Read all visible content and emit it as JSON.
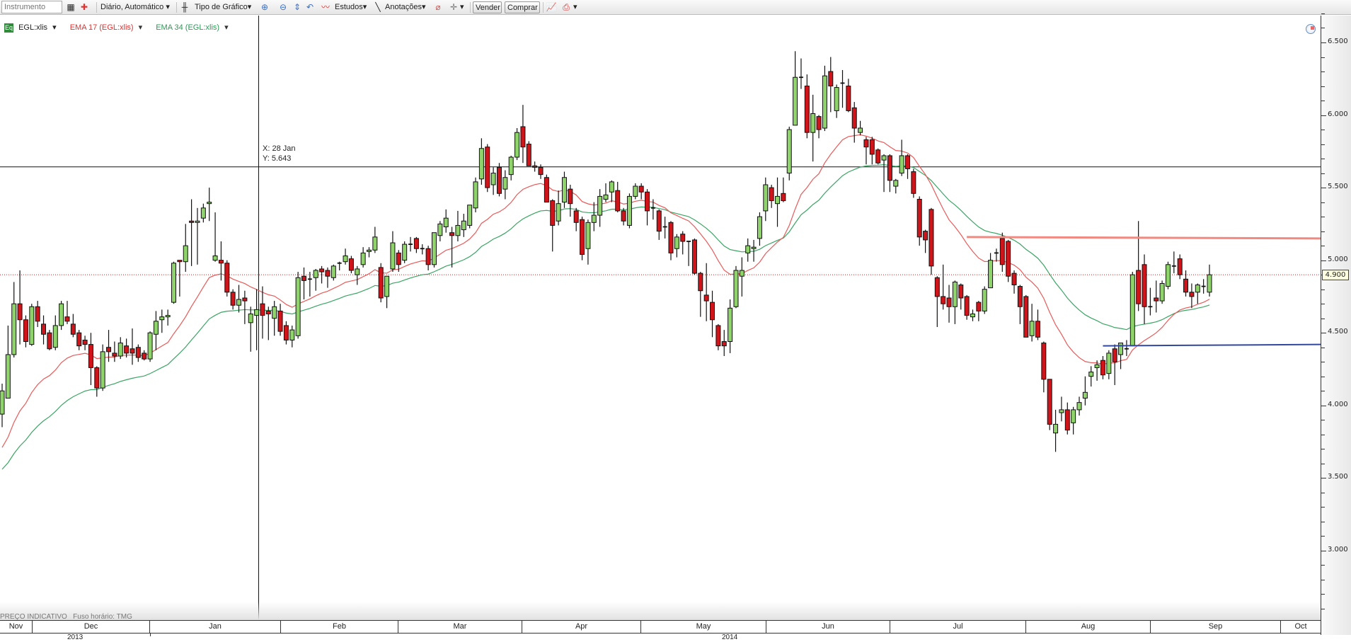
{
  "toolbar": {
    "instrument_placeholder": "Instrumento",
    "period": "Diário,  Automático",
    "chart_type": "Tipo de Gráfico",
    "studies": "Estudos",
    "annotations": "Anotações",
    "sell": "Vender",
    "buy": "Comprar",
    "dropdown_glyph": "▾"
  },
  "legend": {
    "badge": "Eq",
    "instrument": "EGL:xlis",
    "ema17": "EMA 17 (EGL:xlis)",
    "ema34": "EMA 34 (EGL:xlis)"
  },
  "crosshair": {
    "x_label": "X: 28 Jan",
    "y_label": "Y: 5.643"
  },
  "footer": {
    "price_note": "PREÇO INDICATIVO",
    "timezone": "Fuso horário: TMG"
  },
  "colors": {
    "up": "#8fd46a",
    "down": "#d0141a",
    "ema17": "#e85a5a",
    "ema34": "#3aa564",
    "resistance": "#f08a80",
    "support": "#3048a0",
    "last_price": "#cc2222"
  },
  "chart_data": {
    "type": "candlestick",
    "title": "",
    "xlabel": "",
    "ylabel": "",
    "ylim": [
      2.5,
      6.7
    ],
    "y_ticks": [
      "6.500",
      "6.000",
      "5.500",
      "5.000",
      "4.500",
      "4.000",
      "3.500",
      "3.000"
    ],
    "x_months": [
      "Nov",
      "Dec",
      "Jan",
      "Feb",
      "Mar",
      "Apr",
      "May",
      "Jun",
      "Jul",
      "Aug",
      "Sep",
      "Oct"
    ],
    "x_years": [
      "2013",
      "2014"
    ],
    "grid": false,
    "last_price": 4.9,
    "last_price_label": "4.900",
    "crosshair_price": 5.643,
    "crosshair_date": "28 Jan",
    "ema17_start": 3.71,
    "ema34_start": 3.56,
    "resistance_line": {
      "price_from": 5.16,
      "price_to": 5.15,
      "from_bar": 163
    },
    "support_line": {
      "price_from": 4.41,
      "price_to": 4.42,
      "from_bar": 186
    },
    "ohlc": [
      [
        3.94,
        4.15,
        3.85,
        4.1
      ],
      [
        4.05,
        4.55,
        4.05,
        4.35
      ],
      [
        4.35,
        4.85,
        4.33,
        4.7
      ],
      [
        4.7,
        4.93,
        4.42,
        4.59
      ],
      [
        4.59,
        4.62,
        4.4,
        4.44
      ],
      [
        4.42,
        4.7,
        4.41,
        4.68
      ],
      [
        4.68,
        4.72,
        4.54,
        4.58
      ],
      [
        4.56,
        4.62,
        4.42,
        4.49
      ],
      [
        4.5,
        4.52,
        4.38,
        4.39
      ],
      [
        4.4,
        4.62,
        4.38,
        4.55
      ],
      [
        4.55,
        4.72,
        4.52,
        4.7
      ],
      [
        4.61,
        4.72,
        4.56,
        4.58
      ],
      [
        4.56,
        4.63,
        4.47,
        4.49
      ],
      [
        4.5,
        4.52,
        4.38,
        4.41
      ],
      [
        4.45,
        4.48,
        4.38,
        4.42
      ],
      [
        4.42,
        4.5,
        4.14,
        4.26
      ],
      [
        4.26,
        4.27,
        4.06,
        4.12
      ],
      [
        4.12,
        4.42,
        4.1,
        4.37
      ],
      [
        4.4,
        4.52,
        4.3,
        4.37
      ],
      [
        4.36,
        4.44,
        4.3,
        4.34
      ],
      [
        4.34,
        4.47,
        4.32,
        4.43
      ],
      [
        4.41,
        4.46,
        4.33,
        4.36
      ],
      [
        4.39,
        4.53,
        4.28,
        4.36
      ],
      [
        4.4,
        4.42,
        4.3,
        4.33
      ],
      [
        4.36,
        4.38,
        4.31,
        4.32
      ],
      [
        4.32,
        4.51,
        4.3,
        4.5
      ],
      [
        4.49,
        4.65,
        4.38,
        4.58
      ],
      [
        4.59,
        4.66,
        4.5,
        4.61
      ],
      [
        4.61,
        4.66,
        4.55,
        4.62
      ],
      [
        4.71,
        4.99,
        4.7,
        4.98
      ],
      [
        5.0,
        5.0,
        4.75,
        4.99
      ],
      [
        4.99,
        5.25,
        4.92,
        5.1
      ],
      [
        5.27,
        5.42,
        4.96,
        5.26
      ],
      [
        5.26,
        5.36,
        4.97,
        5.27
      ],
      [
        5.29,
        5.39,
        5.26,
        5.36
      ],
      [
        5.39,
        5.5,
        5.27,
        5.4
      ],
      [
        5.0,
        5.33,
        4.99,
        5.03
      ],
      [
        5.0,
        5.13,
        4.86,
        4.98
      ],
      [
        4.98,
        5.0,
        4.75,
        4.78
      ],
      [
        4.78,
        4.8,
        4.66,
        4.69
      ],
      [
        4.69,
        4.83,
        4.64,
        4.73
      ],
      [
        4.74,
        4.79,
        4.56,
        4.72
      ],
      [
        4.57,
        4.68,
        4.37,
        4.63
      ],
      [
        4.62,
        4.8,
        4.38,
        4.66
      ],
      [
        4.7,
        4.82,
        4.46,
        4.62
      ],
      [
        4.65,
        4.68,
        4.45,
        4.63
      ],
      [
        4.6,
        4.72,
        4.48,
        4.68
      ],
      [
        4.65,
        4.7,
        4.48,
        4.51
      ],
      [
        4.55,
        4.58,
        4.42,
        4.45
      ],
      [
        4.45,
        4.55,
        4.4,
        4.52
      ],
      [
        4.48,
        4.92,
        4.46,
        4.88
      ],
      [
        4.89,
        4.95,
        4.73,
        4.86
      ],
      [
        4.87,
        4.92,
        4.75,
        4.87
      ],
      [
        4.88,
        4.94,
        4.79,
        4.93
      ],
      [
        4.94,
        4.96,
        4.84,
        4.92
      ],
      [
        4.93,
        4.95,
        4.81,
        4.89
      ],
      [
        4.88,
        4.97,
        4.86,
        4.96
      ],
      [
        4.98,
        4.99,
        4.93,
        4.98
      ],
      [
        4.99,
        5.08,
        4.97,
        5.03
      ],
      [
        5.01,
        5.03,
        4.91,
        4.93
      ],
      [
        4.9,
        4.96,
        4.83,
        4.94
      ],
      [
        4.97,
        5.09,
        4.95,
        5.05
      ],
      [
        5.06,
        5.09,
        5.02,
        5.07
      ],
      [
        5.07,
        5.23,
        5.05,
        5.16
      ],
      [
        4.95,
        4.98,
        4.71,
        4.74
      ],
      [
        4.75,
        4.89,
        4.67,
        4.89
      ],
      [
        4.94,
        5.2,
        4.92,
        5.12
      ],
      [
        5.05,
        5.07,
        4.92,
        4.97
      ],
      [
        5.0,
        5.13,
        4.98,
        5.11
      ],
      [
        5.11,
        5.16,
        5.06,
        5.11
      ],
      [
        5.15,
        5.16,
        5.05,
        5.08
      ],
      [
        5.08,
        5.11,
        5.04,
        5.08
      ],
      [
        5.08,
        5.1,
        4.93,
        4.97
      ],
      [
        4.97,
        5.19,
        4.95,
        5.19
      ],
      [
        5.17,
        5.27,
        5.13,
        5.25
      ],
      [
        5.23,
        5.35,
        5.19,
        5.29
      ],
      [
        5.19,
        5.23,
        4.95,
        5.17
      ],
      [
        5.17,
        5.34,
        5.13,
        5.24
      ],
      [
        5.21,
        5.32,
        5.16,
        5.27
      ],
      [
        5.24,
        5.38,
        5.22,
        5.38
      ],
      [
        5.36,
        5.57,
        5.33,
        5.54
      ],
      [
        5.56,
        5.84,
        5.52,
        5.77
      ],
      [
        5.78,
        5.8,
        5.47,
        5.5
      ],
      [
        5.52,
        5.64,
        5.45,
        5.6
      ],
      [
        5.64,
        5.67,
        5.44,
        5.46
      ],
      [
        5.49,
        5.62,
        5.42,
        5.57
      ],
      [
        5.59,
        5.72,
        5.55,
        5.71
      ],
      [
        5.71,
        5.91,
        5.69,
        5.88
      ],
      [
        5.92,
        6.07,
        5.67,
        5.78
      ],
      [
        5.8,
        5.82,
        5.65,
        5.65
      ],
      [
        5.65,
        5.68,
        5.61,
        5.64
      ],
      [
        5.64,
        5.66,
        5.56,
        5.59
      ],
      [
        5.57,
        5.59,
        5.4,
        5.4
      ],
      [
        5.41,
        5.42,
        5.06,
        5.24
      ],
      [
        5.27,
        5.48,
        5.24,
        5.39
      ],
      [
        5.4,
        5.61,
        5.36,
        5.57
      ],
      [
        5.49,
        5.52,
        5.3,
        5.39
      ],
      [
        5.34,
        5.36,
        5.2,
        5.26
      ],
      [
        5.28,
        5.3,
        5.0,
        5.04
      ],
      [
        5.08,
        5.28,
        4.97,
        5.26
      ],
      [
        5.26,
        5.4,
        5.2,
        5.31
      ],
      [
        5.31,
        5.49,
        5.23,
        5.44
      ],
      [
        5.42,
        5.53,
        5.4,
        5.45
      ],
      [
        5.47,
        5.55,
        5.4,
        5.54
      ],
      [
        5.48,
        5.54,
        5.33,
        5.34
      ],
      [
        5.34,
        5.36,
        5.24,
        5.27
      ],
      [
        5.24,
        5.46,
        5.22,
        5.44
      ],
      [
        5.44,
        5.53,
        5.42,
        5.51
      ],
      [
        5.51,
        5.53,
        5.42,
        5.47
      ],
      [
        5.47,
        5.49,
        5.24,
        5.34
      ],
      [
        5.36,
        5.42,
        5.28,
        5.36
      ],
      [
        5.34,
        5.35,
        5.14,
        5.2
      ],
      [
        5.23,
        5.3,
        5.15,
        5.23
      ],
      [
        5.26,
        5.27,
        5.0,
        5.05
      ],
      [
        5.08,
        5.18,
        5.02,
        5.16
      ],
      [
        5.18,
        5.2,
        5.04,
        5.13
      ],
      [
        5.13,
        5.13,
        4.96,
        5.13
      ],
      [
        5.14,
        5.15,
        4.9,
        4.91
      ],
      [
        4.91,
        4.92,
        4.61,
        4.79
      ],
      [
        4.76,
        4.98,
        4.58,
        4.72
      ],
      [
        4.71,
        4.79,
        4.47,
        4.59
      ],
      [
        4.55,
        4.56,
        4.38,
        4.41
      ],
      [
        4.44,
        4.52,
        4.34,
        4.41
      ],
      [
        4.44,
        4.73,
        4.36,
        4.67
      ],
      [
        4.68,
        4.96,
        4.67,
        4.93
      ],
      [
        4.89,
        5.02,
        4.75,
        4.93
      ],
      [
        5.05,
        5.15,
        4.99,
        5.1
      ],
      [
        5.08,
        5.14,
        4.99,
        5.09
      ],
      [
        5.15,
        5.33,
        5.1,
        5.3
      ],
      [
        5.34,
        5.57,
        5.27,
        5.52
      ],
      [
        5.5,
        5.52,
        5.36,
        5.41
      ],
      [
        5.39,
        5.57,
        5.23,
        5.44
      ],
      [
        5.46,
        5.57,
        5.4,
        5.41
      ],
      [
        5.6,
        5.92,
        5.55,
        5.9
      ],
      [
        5.93,
        6.44,
        5.93,
        6.26
      ],
      [
        6.26,
        6.39,
        6.18,
        6.26
      ],
      [
        6.2,
        6.28,
        5.84,
        5.88
      ],
      [
        5.88,
        6.14,
        5.68,
        6.01
      ],
      [
        5.99,
        6.0,
        5.84,
        5.9
      ],
      [
        5.91,
        6.34,
        5.89,
        6.27
      ],
      [
        6.3,
        6.4,
        6.02,
        6.2
      ],
      [
        6.03,
        6.21,
        5.98,
        6.19
      ],
      [
        6.22,
        6.31,
        6.05,
        6.22
      ],
      [
        6.2,
        6.25,
        6.02,
        6.03
      ],
      [
        6.05,
        6.09,
        5.81,
        5.91
      ],
      [
        5.88,
        5.96,
        5.86,
        5.91
      ],
      [
        5.83,
        5.85,
        5.66,
        5.78
      ],
      [
        5.83,
        5.85,
        5.66,
        5.73
      ],
      [
        5.76,
        5.77,
        5.66,
        5.67
      ],
      [
        5.69,
        5.73,
        5.47,
        5.72
      ],
      [
        5.72,
        5.73,
        5.47,
        5.55
      ],
      [
        5.51,
        5.56,
        5.46,
        5.55
      ],
      [
        5.6,
        5.83,
        5.58,
        5.72
      ],
      [
        5.72,
        5.73,
        5.56,
        5.63
      ],
      [
        5.61,
        5.63,
        5.43,
        5.46
      ],
      [
        5.42,
        5.44,
        5.1,
        5.16
      ],
      [
        5.2,
        5.21,
        5.05,
        5.14
      ],
      [
        5.35,
        5.36,
        4.9,
        4.96
      ],
      [
        4.88,
        4.89,
        4.54,
        4.75
      ],
      [
        4.75,
        4.97,
        4.66,
        4.7
      ],
      [
        4.74,
        4.83,
        4.57,
        4.68
      ],
      [
        4.68,
        4.86,
        4.56,
        4.85
      ],
      [
        4.83,
        4.84,
        4.66,
        4.74
      ],
      [
        4.75,
        4.76,
        4.59,
        4.62
      ],
      [
        4.61,
        4.66,
        4.58,
        4.63
      ],
      [
        4.71,
        4.72,
        4.58,
        4.65
      ],
      [
        4.65,
        4.82,
        4.63,
        4.8
      ],
      [
        4.81,
        5.05,
        4.81,
        5.0
      ],
      [
        5.05,
        5.08,
        4.99,
        5.05
      ],
      [
        5.15,
        5.19,
        4.92,
        4.97
      ],
      [
        5.13,
        5.14,
        4.85,
        4.89
      ],
      [
        4.91,
        4.93,
        4.77,
        4.83
      ],
      [
        4.82,
        4.83,
        4.56,
        4.68
      ],
      [
        4.75,
        4.76,
        4.47,
        4.47
      ],
      [
        4.48,
        4.7,
        4.44,
        4.58
      ],
      [
        4.58,
        4.66,
        4.45,
        4.47
      ],
      [
        4.43,
        4.44,
        4.09,
        4.18
      ],
      [
        4.18,
        4.18,
        3.83,
        3.87
      ],
      [
        3.81,
        3.97,
        3.68,
        3.87
      ],
      [
        3.95,
        4.06,
        3.89,
        3.97
      ],
      [
        3.97,
        4.02,
        3.8,
        3.83
      ],
      [
        3.88,
        3.99,
        3.8,
        3.97
      ],
      [
        3.97,
        4.06,
        3.93,
        4.02
      ],
      [
        4.05,
        4.2,
        4.0,
        4.09
      ],
      [
        4.2,
        4.27,
        4.13,
        4.23
      ],
      [
        4.26,
        4.31,
        4.17,
        4.28
      ],
      [
        4.31,
        4.34,
        4.18,
        4.21
      ],
      [
        4.22,
        4.38,
        4.18,
        4.36
      ],
      [
        4.39,
        4.42,
        4.14,
        4.3
      ],
      [
        4.35,
        4.43,
        4.25,
        4.43
      ],
      [
        4.39,
        4.45,
        4.34,
        4.39
      ],
      [
        4.41,
        4.92,
        4.41,
        4.9
      ],
      [
        4.93,
        5.27,
        4.65,
        4.7
      ],
      [
        4.97,
        5.04,
        4.56,
        4.68
      ],
      [
        4.68,
        4.81,
        4.62,
        4.68
      ],
      [
        4.74,
        4.86,
        4.64,
        4.72
      ],
      [
        4.72,
        4.86,
        4.7,
        4.84
      ],
      [
        4.82,
        4.99,
        4.8,
        4.97
      ],
      [
        4.96,
        5.06,
        4.91,
        4.96
      ],
      [
        5.01,
        5.04,
        4.87,
        4.9
      ],
      [
        4.87,
        4.93,
        4.75,
        4.78
      ],
      [
        4.78,
        4.84,
        4.67,
        4.75
      ],
      [
        4.78,
        4.84,
        4.7,
        4.83
      ],
      [
        4.82,
        4.87,
        4.77,
        4.82
      ],
      [
        4.78,
        4.97,
        4.75,
        4.9
      ]
    ]
  }
}
